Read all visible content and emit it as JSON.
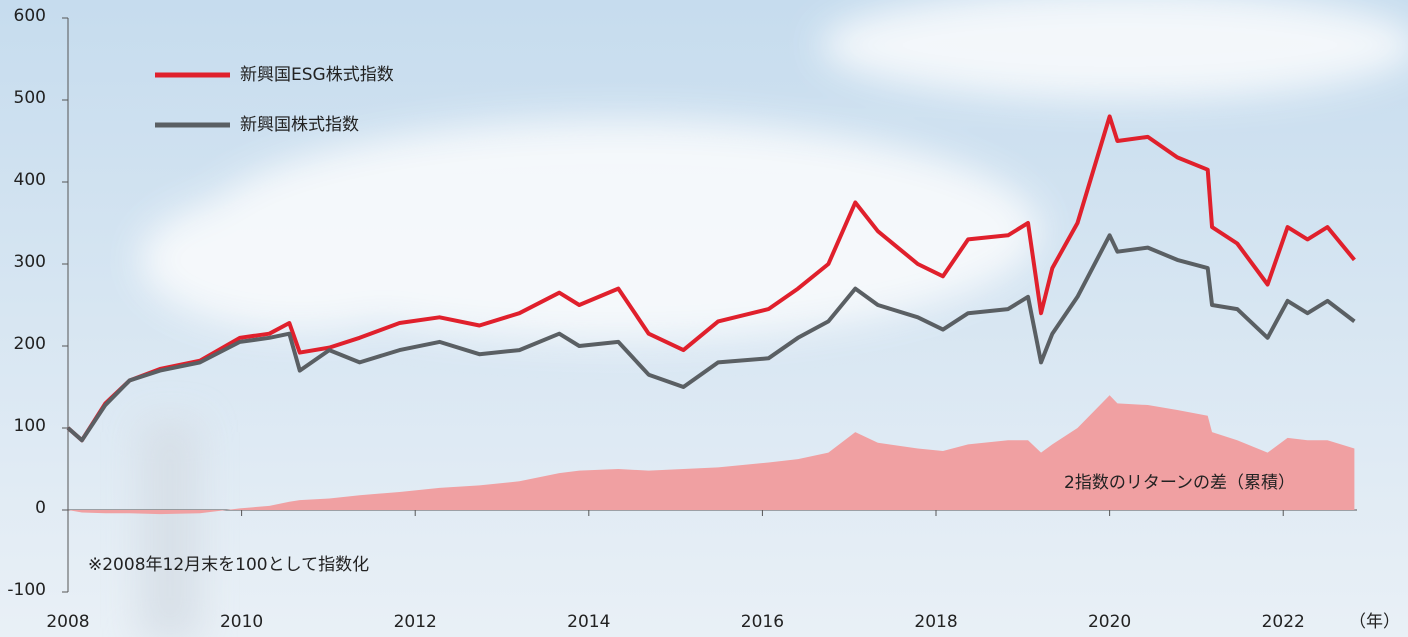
{
  "chart_data": {
    "type": "line",
    "series": [
      {
        "name": "新興国ESG株式指数",
        "color": "#e0202c",
        "values": [
          100,
          85,
          130,
          158,
          172,
          182,
          210,
          215,
          228,
          192,
          198,
          210,
          228,
          235,
          225,
          240,
          265,
          250,
          270,
          215,
          195,
          230,
          245,
          270,
          300,
          375,
          340,
          300,
          285,
          330,
          335,
          350,
          240,
          295,
          350,
          480,
          450,
          455,
          430,
          415,
          345,
          325,
          275,
          345,
          330,
          345,
          305
        ]
      },
      {
        "name": "新興国株式指数",
        "color": "#5a5f63",
        "values": [
          100,
          85,
          128,
          158,
          170,
          180,
          205,
          210,
          215,
          170,
          195,
          180,
          195,
          205,
          190,
          195,
          215,
          200,
          205,
          165,
          150,
          180,
          185,
          210,
          230,
          270,
          250,
          235,
          220,
          240,
          245,
          260,
          180,
          215,
          260,
          335,
          315,
          320,
          305,
          295,
          250,
          245,
          210,
          255,
          240,
          255,
          230
        ]
      },
      {
        "name": "2指数のリターンの差（累積）",
        "color": "#f0a0a2",
        "style": "area",
        "values": [
          0,
          -3,
          -4,
          -4,
          -5,
          -4,
          2,
          5,
          10,
          12,
          14,
          18,
          22,
          27,
          30,
          35,
          45,
          48,
          50,
          48,
          50,
          52,
          58,
          62,
          70,
          95,
          82,
          75,
          72,
          80,
          85,
          85,
          70,
          80,
          100,
          140,
          130,
          128,
          122,
          115,
          95,
          85,
          70,
          88,
          85,
          85,
          75
        ]
      }
    ],
    "x": [
      2008.0,
      2008.16,
      2008.43,
      2008.71,
      2009.06,
      2009.52,
      2009.98,
      2010.32,
      2010.55,
      2010.67,
      2011.01,
      2011.36,
      2011.82,
      2012.28,
      2012.74,
      2013.2,
      2013.66,
      2013.89,
      2014.34,
      2014.69,
      2015.09,
      2015.49,
      2016.07,
      2016.41,
      2016.76,
      2017.07,
      2017.33,
      2017.79,
      2018.08,
      2018.37,
      2018.83,
      2019.06,
      2019.21,
      2019.34,
      2019.63,
      2020.0,
      2020.09,
      2020.44,
      2020.78,
      2021.13,
      2021.18,
      2021.47,
      2021.82,
      2022.05,
      2022.28,
      2022.51,
      2022.82
    ],
    "xlim": [
      2008,
      2022.85
    ],
    "xticks": [
      2008,
      2010,
      2012,
      2014,
      2016,
      2018,
      2020,
      2022
    ],
    "x_unit": "（年）",
    "ylim": [
      -100,
      600
    ],
    "yticks": [
      -100,
      0,
      100,
      200,
      300,
      400,
      500,
      600
    ],
    "note": "※2008年12月末を100として指数化"
  }
}
